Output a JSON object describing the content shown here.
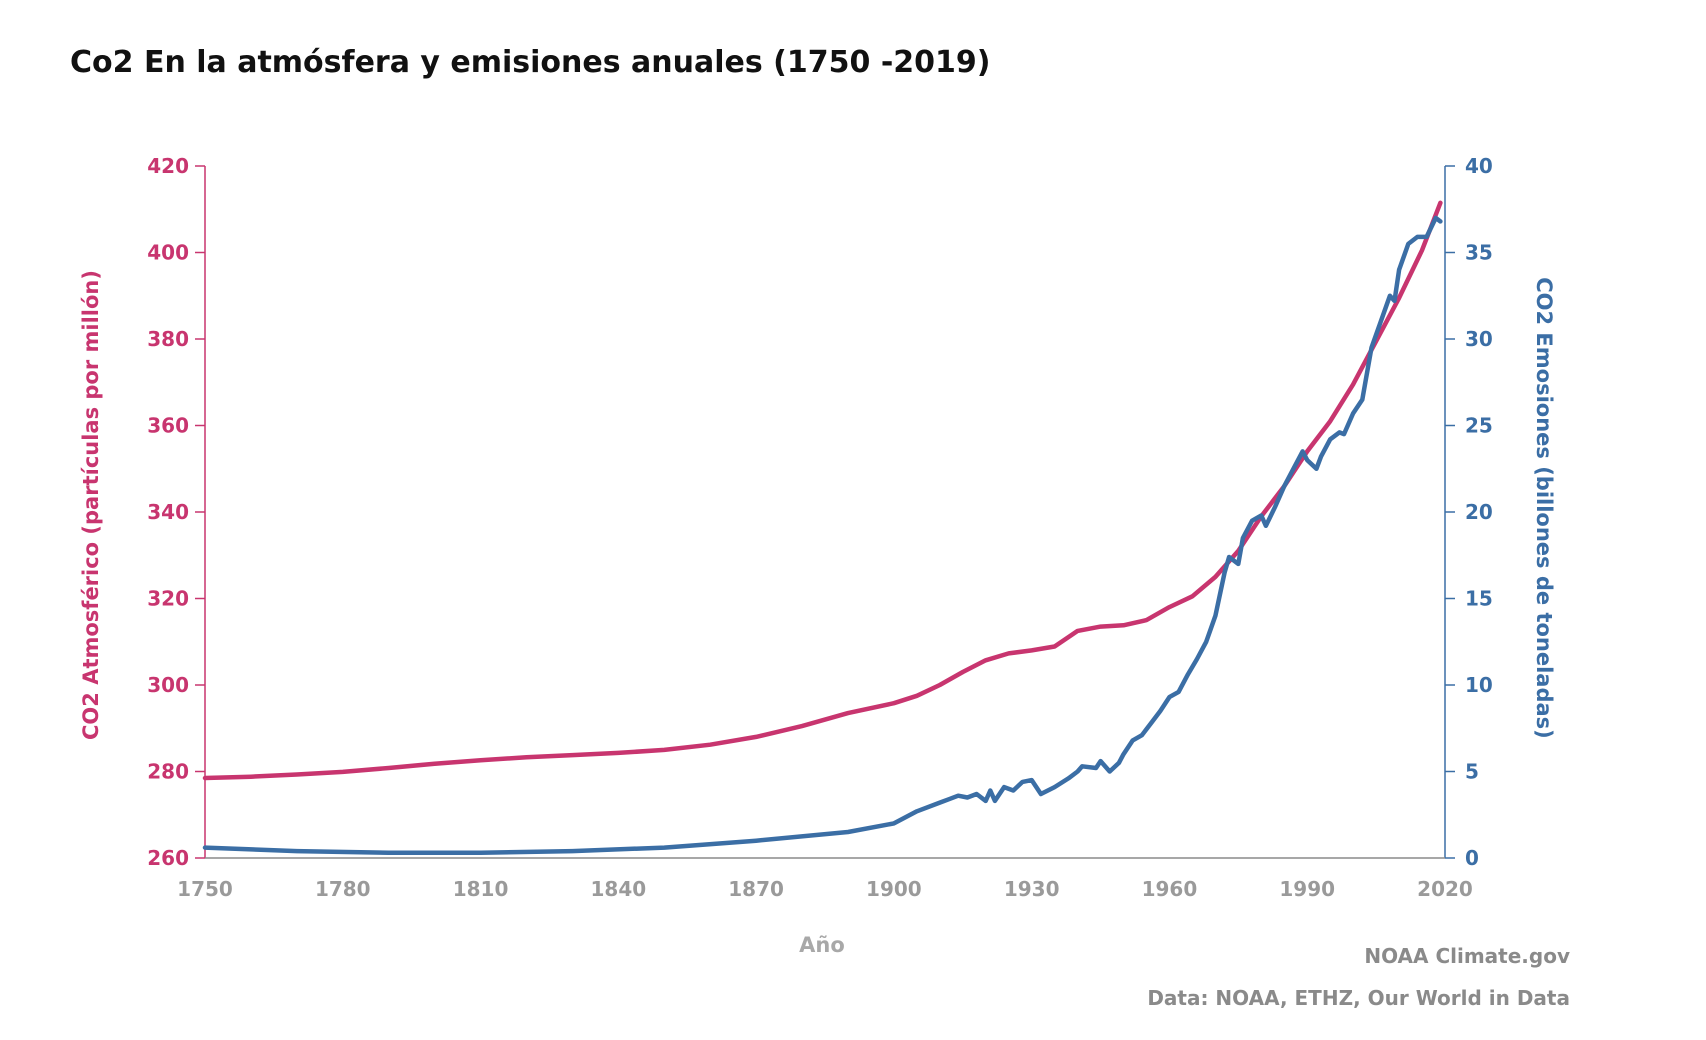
{
  "title": "Co2 En la atmósfera y emisiones anuales (1750 -2019)",
  "source_org": "NOAA Climate.gov",
  "source_data": "Data: NOAA, ETHZ, Our World in Data",
  "colors": {
    "atmospheric": "#c8356f",
    "emissions": "#3b6ea5",
    "x_axis_text": "#9a9a9a",
    "source_text": "#8a8a8a"
  },
  "chart_data": {
    "type": "line",
    "title": "Co2 En la atmósfera y emisiones anuales (1750 -2019)",
    "xlabel": "Año",
    "xlim": [
      1750,
      2020
    ],
    "x_ticks": [
      1750,
      1780,
      1810,
      1840,
      1870,
      1900,
      1930,
      1960,
      1990,
      2020
    ],
    "y_left": {
      "label": "CO2 Atmosférico (partículas por millón)",
      "ylim": [
        260,
        420
      ],
      "ticks": [
        260,
        280,
        300,
        320,
        340,
        360,
        380,
        400,
        420
      ]
    },
    "y_right": {
      "label": "CO2 Emosiones (billones de toneladas)",
      "ylim": [
        0,
        40
      ],
      "ticks": [
        0,
        5,
        10,
        15,
        20,
        25,
        30,
        35,
        40
      ]
    },
    "grid": false,
    "legend": "none",
    "series": [
      {
        "axis": "left",
        "x": [
          1750,
          1760,
          1770,
          1780,
          1790,
          1800,
          1810,
          1820,
          1830,
          1840,
          1850,
          1860,
          1870,
          1880,
          1890,
          1900,
          1905,
          1910,
          1915,
          1920,
          1925,
          1930,
          1935,
          1940,
          1945,
          1950,
          1955,
          1960,
          1965,
          1970,
          1975,
          1980,
          1985,
          1990,
          1995,
          2000,
          2005,
          2010,
          2015,
          2019
        ],
        "values": [
          278.5,
          278.8,
          279.3,
          279.9,
          280.8,
          281.8,
          282.6,
          283.3,
          283.8,
          284.3,
          285.0,
          286.2,
          288.0,
          290.5,
          293.5,
          295.8,
          297.5,
          300.0,
          303.0,
          305.7,
          307.3,
          308.0,
          308.9,
          312.5,
          313.5,
          313.8,
          315.0,
          318.0,
          320.5,
          325.0,
          331.0,
          339.0,
          346.0,
          354.0,
          361.0,
          369.5,
          379.5,
          389.5,
          400.5,
          411.5
        ]
      },
      {
        "axis": "right",
        "x": [
          1750,
          1770,
          1790,
          1810,
          1830,
          1850,
          1870,
          1890,
          1900,
          1905,
          1910,
          1912,
          1914,
          1916,
          1918,
          1920,
          1921,
          1922,
          1924,
          1926,
          1928,
          1930,
          1932,
          1935,
          1938,
          1940,
          1941,
          1944,
          1945,
          1947,
          1949,
          1950,
          1952,
          1954,
          1956,
          1958,
          1960,
          1962,
          1964,
          1966,
          1968,
          1970,
          1972,
          1973,
          1975,
          1976,
          1978,
          1980,
          1981,
          1983,
          1985,
          1987,
          1989,
          1990,
          1992,
          1993,
          1995,
          1997,
          1998,
          2000,
          2002,
          2004,
          2006,
          2008,
          2009,
          2010,
          2012,
          2014,
          2016,
          2018,
          2019
        ],
        "values": [
          0.6,
          0.4,
          0.3,
          0.3,
          0.4,
          0.6,
          1.0,
          1.5,
          2.0,
          2.7,
          3.2,
          3.4,
          3.6,
          3.5,
          3.7,
          3.3,
          3.9,
          3.3,
          4.1,
          3.9,
          4.4,
          4.5,
          3.7,
          4.1,
          4.6,
          5.0,
          5.3,
          5.2,
          5.6,
          5.0,
          5.5,
          6.0,
          6.8,
          7.1,
          7.8,
          8.5,
          9.3,
          9.6,
          10.6,
          11.5,
          12.5,
          14.0,
          16.5,
          17.4,
          17.0,
          18.5,
          19.5,
          19.8,
          19.2,
          20.3,
          21.5,
          22.5,
          23.5,
          23.0,
          22.5,
          23.2,
          24.2,
          24.6,
          24.5,
          25.7,
          26.5,
          29.5,
          31.0,
          32.5,
          32.2,
          34.0,
          35.5,
          35.9,
          35.9,
          37.0,
          36.8
        ]
      }
    ]
  }
}
